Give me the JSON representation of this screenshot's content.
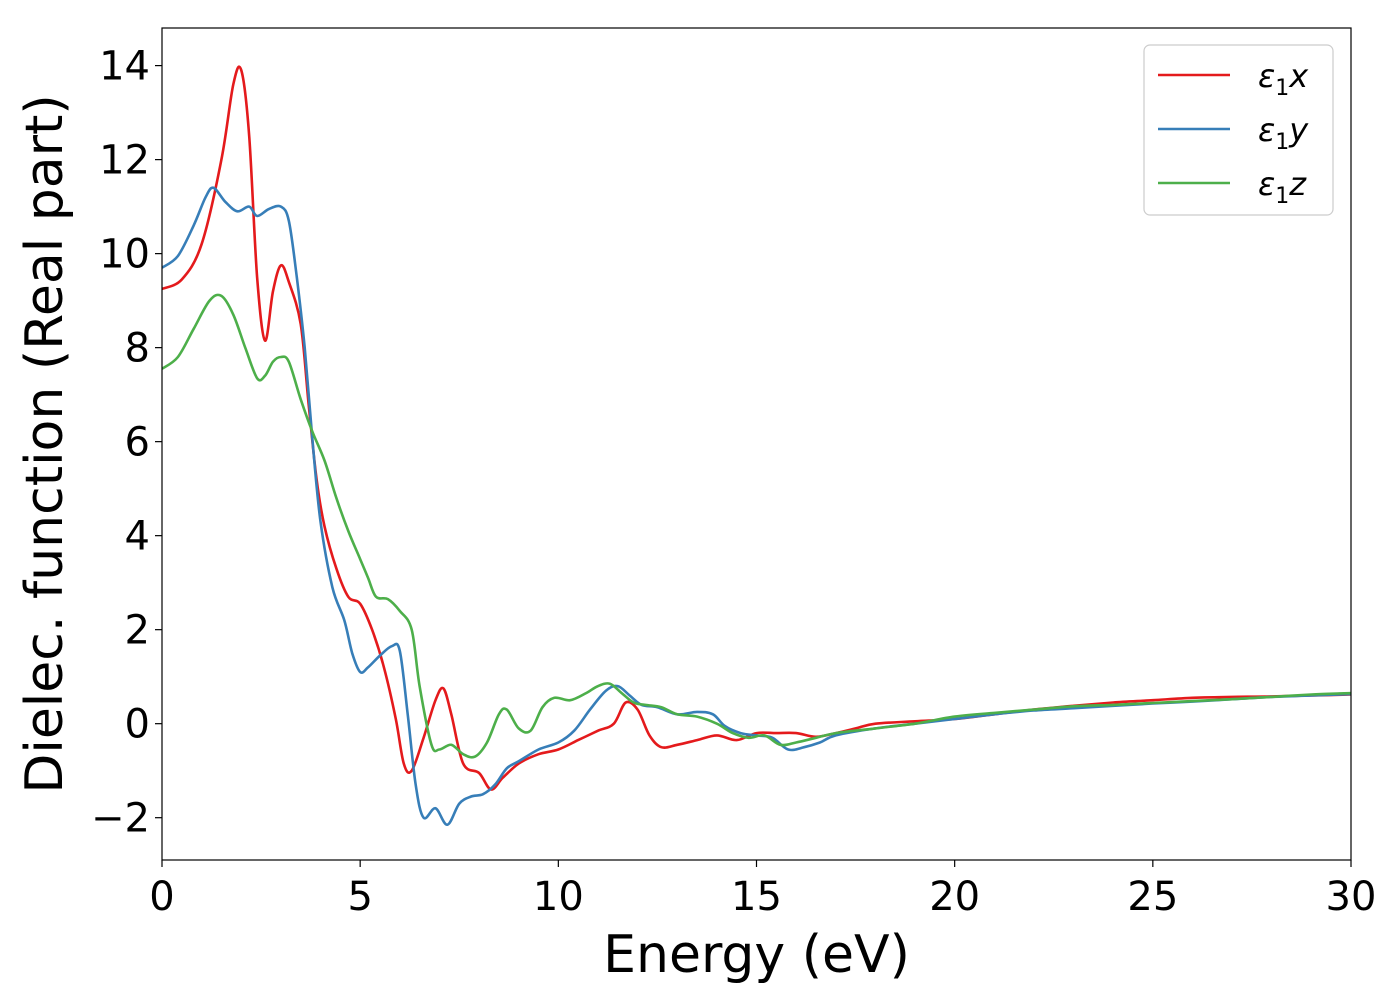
{
  "chart_data": {
    "type": "line",
    "xlabel": "Energy (eV)",
    "ylabel": "Dielec. function (Real part)",
    "xlim": [
      0,
      30
    ],
    "ylim": [
      -2.9,
      14.8
    ],
    "xticks": [
      0,
      5,
      10,
      15,
      20,
      25,
      30
    ],
    "xtick_labels": [
      "0",
      "5",
      "10",
      "15",
      "20",
      "25",
      "30"
    ],
    "yticks": [
      -2,
      0,
      2,
      4,
      6,
      8,
      10,
      12,
      14
    ],
    "ytick_labels": [
      "−2",
      "0",
      "2",
      "4",
      "6",
      "8",
      "10",
      "12",
      "14"
    ],
    "grid": false,
    "legend_position": "top-right",
    "series": [
      {
        "name": "ε1x",
        "legend_base": "ε",
        "legend_sub": "1",
        "legend_tail": "x",
        "color": "#e41a1c",
        "points": [
          [
            0,
            9.25
          ],
          [
            0.5,
            9.45
          ],
          [
            1.0,
            10.2
          ],
          [
            1.5,
            12.0
          ],
          [
            1.8,
            13.6
          ],
          [
            2.0,
            13.9
          ],
          [
            2.2,
            12.5
          ],
          [
            2.4,
            9.5
          ],
          [
            2.6,
            8.15
          ],
          [
            2.8,
            9.2
          ],
          [
            3.0,
            9.75
          ],
          [
            3.2,
            9.4
          ],
          [
            3.5,
            8.5
          ],
          [
            3.7,
            6.8
          ],
          [
            3.9,
            5.2
          ],
          [
            4.1,
            4.2
          ],
          [
            4.4,
            3.3
          ],
          [
            4.7,
            2.7
          ],
          [
            5.0,
            2.55
          ],
          [
            5.3,
            2.0
          ],
          [
            5.6,
            1.2
          ],
          [
            5.9,
            0.1
          ],
          [
            6.1,
            -0.85
          ],
          [
            6.3,
            -1.0
          ],
          [
            6.6,
            -0.3
          ],
          [
            6.9,
            0.5
          ],
          [
            7.1,
            0.75
          ],
          [
            7.3,
            0.2
          ],
          [
            7.6,
            -0.85
          ],
          [
            8.0,
            -1.05
          ],
          [
            8.3,
            -1.4
          ],
          [
            8.6,
            -1.15
          ],
          [
            9.0,
            -0.85
          ],
          [
            9.5,
            -0.65
          ],
          [
            10.0,
            -0.55
          ],
          [
            10.5,
            -0.35
          ],
          [
            11.0,
            -0.15
          ],
          [
            11.4,
            0.0
          ],
          [
            11.7,
            0.45
          ],
          [
            12.0,
            0.3
          ],
          [
            12.3,
            -0.25
          ],
          [
            12.6,
            -0.5
          ],
          [
            13.0,
            -0.45
          ],
          [
            13.5,
            -0.35
          ],
          [
            14.0,
            -0.25
          ],
          [
            14.5,
            -0.35
          ],
          [
            15.0,
            -0.2
          ],
          [
            15.5,
            -0.2
          ],
          [
            16.0,
            -0.2
          ],
          [
            16.5,
            -0.28
          ],
          [
            17.0,
            -0.2
          ],
          [
            17.5,
            -0.1
          ],
          [
            18.0,
            0.0
          ],
          [
            19.0,
            0.05
          ],
          [
            20.0,
            0.1
          ],
          [
            21.0,
            0.2
          ],
          [
            22.0,
            0.3
          ],
          [
            23.0,
            0.38
          ],
          [
            24.0,
            0.45
          ],
          [
            25.0,
            0.5
          ],
          [
            26.0,
            0.55
          ],
          [
            27.0,
            0.57
          ],
          [
            28.0,
            0.58
          ],
          [
            29.0,
            0.6
          ],
          [
            30.0,
            0.62
          ]
        ]
      },
      {
        "name": "ε1y",
        "legend_base": "ε",
        "legend_sub": "1",
        "legend_tail": "y",
        "color": "#377eb8",
        "points": [
          [
            0,
            9.7
          ],
          [
            0.4,
            9.95
          ],
          [
            0.8,
            10.6
          ],
          [
            1.1,
            11.2
          ],
          [
            1.3,
            11.4
          ],
          [
            1.6,
            11.1
          ],
          [
            1.9,
            10.9
          ],
          [
            2.2,
            11.0
          ],
          [
            2.4,
            10.8
          ],
          [
            2.7,
            10.95
          ],
          [
            3.0,
            11.0
          ],
          [
            3.2,
            10.7
          ],
          [
            3.4,
            9.5
          ],
          [
            3.6,
            8.0
          ],
          [
            3.8,
            6.0
          ],
          [
            4.0,
            4.3
          ],
          [
            4.3,
            2.9
          ],
          [
            4.6,
            2.2
          ],
          [
            4.8,
            1.5
          ],
          [
            5.0,
            1.1
          ],
          [
            5.2,
            1.2
          ],
          [
            5.5,
            1.45
          ],
          [
            5.8,
            1.65
          ],
          [
            6.0,
            1.55
          ],
          [
            6.2,
            0.2
          ],
          [
            6.4,
            -1.3
          ],
          [
            6.6,
            -2.0
          ],
          [
            6.9,
            -1.8
          ],
          [
            7.2,
            -2.15
          ],
          [
            7.5,
            -1.7
          ],
          [
            7.8,
            -1.55
          ],
          [
            8.1,
            -1.5
          ],
          [
            8.4,
            -1.3
          ],
          [
            8.7,
            -0.95
          ],
          [
            9.0,
            -0.8
          ],
          [
            9.5,
            -0.55
          ],
          [
            10.0,
            -0.4
          ],
          [
            10.4,
            -0.15
          ],
          [
            10.8,
            0.3
          ],
          [
            11.2,
            0.7
          ],
          [
            11.5,
            0.8
          ],
          [
            11.8,
            0.6
          ],
          [
            12.1,
            0.4
          ],
          [
            12.5,
            0.35
          ],
          [
            13.0,
            0.2
          ],
          [
            13.5,
            0.25
          ],
          [
            13.9,
            0.2
          ],
          [
            14.2,
            -0.05
          ],
          [
            14.6,
            -0.2
          ],
          [
            15.0,
            -0.25
          ],
          [
            15.4,
            -0.3
          ],
          [
            15.8,
            -0.55
          ],
          [
            16.2,
            -0.5
          ],
          [
            16.6,
            -0.4
          ],
          [
            17.0,
            -0.25
          ],
          [
            18.0,
            -0.1
          ],
          [
            19.0,
            0.0
          ],
          [
            20.0,
            0.1
          ],
          [
            21.0,
            0.2
          ],
          [
            22.0,
            0.28
          ],
          [
            23.0,
            0.33
          ],
          [
            24.0,
            0.38
          ],
          [
            25.0,
            0.43
          ],
          [
            26.0,
            0.47
          ],
          [
            27.0,
            0.52
          ],
          [
            28.0,
            0.57
          ],
          [
            29.0,
            0.6
          ],
          [
            30.0,
            0.63
          ]
        ]
      },
      {
        "name": "ε1z",
        "legend_base": "ε",
        "legend_sub": "1",
        "legend_tail": "z",
        "color": "#4daf4a",
        "points": [
          [
            0,
            7.55
          ],
          [
            0.4,
            7.8
          ],
          [
            0.8,
            8.4
          ],
          [
            1.2,
            9.0
          ],
          [
            1.5,
            9.1
          ],
          [
            1.8,
            8.7
          ],
          [
            2.1,
            8.0
          ],
          [
            2.4,
            7.35
          ],
          [
            2.6,
            7.4
          ],
          [
            2.8,
            7.7
          ],
          [
            3.0,
            7.8
          ],
          [
            3.2,
            7.7
          ],
          [
            3.5,
            6.9
          ],
          [
            3.8,
            6.2
          ],
          [
            4.1,
            5.6
          ],
          [
            4.4,
            4.8
          ],
          [
            4.7,
            4.1
          ],
          [
            5.0,
            3.5
          ],
          [
            5.2,
            3.1
          ],
          [
            5.4,
            2.7
          ],
          [
            5.7,
            2.65
          ],
          [
            6.0,
            2.4
          ],
          [
            6.3,
            2.0
          ],
          [
            6.5,
            0.8
          ],
          [
            6.8,
            -0.45
          ],
          [
            7.0,
            -0.55
          ],
          [
            7.3,
            -0.45
          ],
          [
            7.6,
            -0.65
          ],
          [
            7.9,
            -0.7
          ],
          [
            8.2,
            -0.4
          ],
          [
            8.5,
            0.2
          ],
          [
            8.7,
            0.3
          ],
          [
            9.0,
            -0.1
          ],
          [
            9.3,
            -0.15
          ],
          [
            9.6,
            0.35
          ],
          [
            9.9,
            0.55
          ],
          [
            10.3,
            0.5
          ],
          [
            10.7,
            0.65
          ],
          [
            11.0,
            0.8
          ],
          [
            11.3,
            0.85
          ],
          [
            11.6,
            0.65
          ],
          [
            11.9,
            0.45
          ],
          [
            12.2,
            0.4
          ],
          [
            12.6,
            0.35
          ],
          [
            13.0,
            0.2
          ],
          [
            13.5,
            0.15
          ],
          [
            14.0,
            0.0
          ],
          [
            14.4,
            -0.2
          ],
          [
            14.8,
            -0.3
          ],
          [
            15.2,
            -0.25
          ],
          [
            15.6,
            -0.45
          ],
          [
            16.0,
            -0.4
          ],
          [
            16.5,
            -0.3
          ],
          [
            17.0,
            -0.2
          ],
          [
            18.0,
            -0.1
          ],
          [
            19.0,
            0.0
          ],
          [
            20.0,
            0.15
          ],
          [
            21.0,
            0.23
          ],
          [
            22.0,
            0.3
          ],
          [
            23.0,
            0.37
          ],
          [
            24.0,
            0.4
          ],
          [
            25.0,
            0.44
          ],
          [
            26.0,
            0.48
          ],
          [
            27.0,
            0.52
          ],
          [
            28.0,
            0.57
          ],
          [
            29.0,
            0.62
          ],
          [
            30.0,
            0.65
          ]
        ]
      }
    ]
  }
}
